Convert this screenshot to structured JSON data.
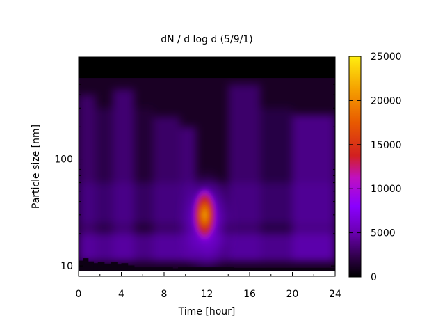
{
  "chart_data": {
    "type": "heatmap",
    "title": "dN / d log d (5/9/1)",
    "xlabel": "Time [hour]",
    "ylabel": "Particle size [nm]",
    "x_ticks": [
      "0",
      "4",
      "8",
      "12",
      "16",
      "20",
      "24"
    ],
    "x_tick_values": [
      0,
      4,
      8,
      12,
      16,
      20,
      24
    ],
    "y_ticks": [
      "10",
      "100"
    ],
    "y_tick_values": [
      10,
      100
    ],
    "y_scale": "log",
    "xlim": [
      0,
      24
    ],
    "ylim": [
      8,
      900
    ],
    "data_size_range_nm": [
      9,
      600
    ],
    "colorbar": {
      "ticks": [
        "0",
        "5000",
        "10000",
        "15000",
        "20000",
        "25000"
      ],
      "tick_values": [
        0,
        5000,
        10000,
        15000,
        20000,
        25000
      ],
      "range": [
        0,
        25000
      ],
      "palette": [
        "#000000",
        "#3a0050",
        "#6a00b0",
        "#8a00ff",
        "#b020d0",
        "#d0301a",
        "#e86000",
        "#f5a000",
        "#ffe000"
      ]
    },
    "feature": {
      "description": "particle burst",
      "time_hour": 12,
      "size_nm": 30,
      "peak_value": 18000
    }
  }
}
